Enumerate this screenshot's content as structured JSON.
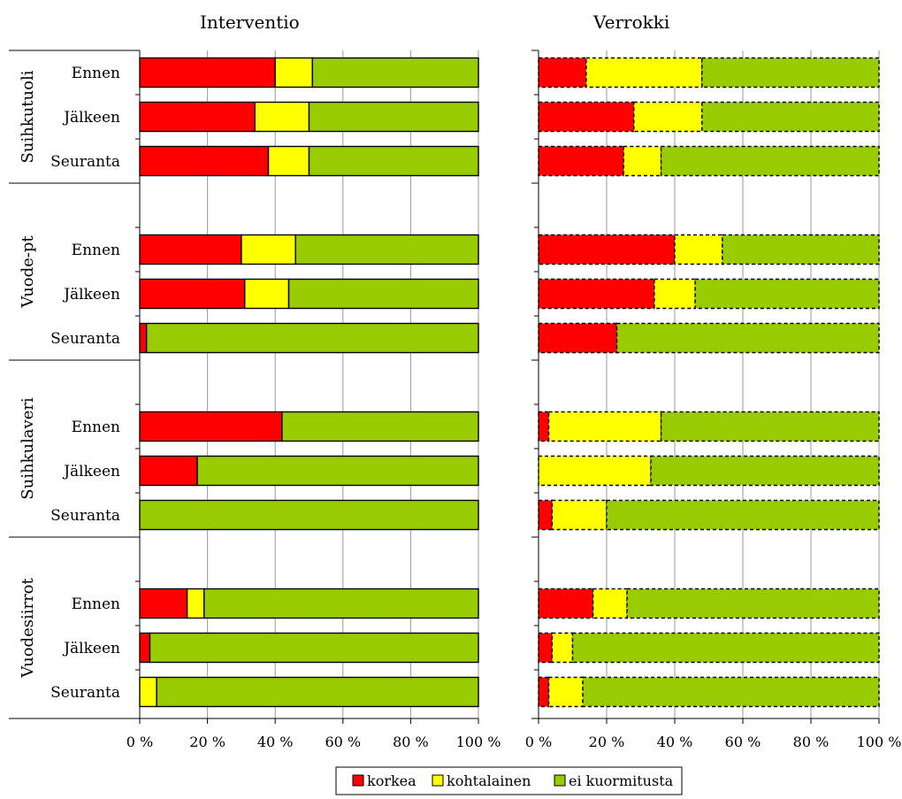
{
  "chart_data": {
    "type": "bar",
    "stacked": true,
    "orientation": "horizontal",
    "panels": [
      {
        "title": "Interventio",
        "bar_border": "solid",
        "groups": [
          {
            "name": "Suihkutuoli",
            "rows": [
              {
                "label": "Ennen",
                "values": [
                  40,
                  11,
                  49
                ]
              },
              {
                "label": "Jälkeen",
                "values": [
                  34,
                  16,
                  50
                ]
              },
              {
                "label": "Seuranta",
                "values": [
                  38,
                  12,
                  50
                ]
              }
            ]
          },
          {
            "name": "Vuode-pt",
            "rows": [
              {
                "label": "Ennen",
                "values": [
                  30,
                  16,
                  54
                ]
              },
              {
                "label": "Jälkeen",
                "values": [
                  31,
                  13,
                  56
                ]
              },
              {
                "label": "Seuranta",
                "values": [
                  2,
                  0,
                  98
                ]
              }
            ]
          },
          {
            "name": "Suihkulaveri",
            "rows": [
              {
                "label": "Ennen",
                "values": [
                  42,
                  0,
                  58
                ]
              },
              {
                "label": "Jälkeen",
                "values": [
                  17,
                  0,
                  83
                ]
              },
              {
                "label": "Seuranta",
                "values": [
                  0,
                  0,
                  100
                ]
              }
            ]
          },
          {
            "name": "Vuodesiirrot",
            "rows": [
              {
                "label": "Ennen",
                "values": [
                  14,
                  5,
                  81
                ]
              },
              {
                "label": "Jälkeen",
                "values": [
                  3,
                  0,
                  97
                ]
              },
              {
                "label": "Seuranta",
                "values": [
                  0,
                  5,
                  95
                ]
              }
            ]
          }
        ]
      },
      {
        "title": "Verrokki",
        "bar_border": "dashed",
        "groups": [
          {
            "name": "Suihkutuoli",
            "rows": [
              {
                "label": "Ennen",
                "values": [
                  14,
                  34,
                  52
                ]
              },
              {
                "label": "Jälkeen",
                "values": [
                  28,
                  20,
                  52
                ]
              },
              {
                "label": "Seuranta",
                "values": [
                  25,
                  11,
                  64
                ]
              }
            ]
          },
          {
            "name": "Vuode-pt",
            "rows": [
              {
                "label": "Ennen",
                "values": [
                  40,
                  14,
                  46
                ]
              },
              {
                "label": "Jälkeen",
                "values": [
                  34,
                  12,
                  54
                ]
              },
              {
                "label": "Seuranta",
                "values": [
                  23,
                  0,
                  77
                ]
              }
            ]
          },
          {
            "name": "Suihkulaveri",
            "rows": [
              {
                "label": "Ennen",
                "values": [
                  3,
                  33,
                  64
                ]
              },
              {
                "label": "Jälkeen",
                "values": [
                  0,
                  33,
                  67
                ]
              },
              {
                "label": "Seuranta",
                "values": [
                  4,
                  16,
                  80
                ]
              }
            ]
          },
          {
            "name": "Vuodesiirrot",
            "rows": [
              {
                "label": "Ennen",
                "values": [
                  16,
                  10,
                  74
                ]
              },
              {
                "label": "Jälkeen",
                "values": [
                  4,
                  6,
                  90
                ]
              },
              {
                "label": "Seuranta",
                "values": [
                  3,
                  10,
                  87
                ]
              }
            ]
          }
        ]
      }
    ],
    "series": [
      {
        "name": "korkea",
        "color": "#ff0000"
      },
      {
        "name": "kohtalainen",
        "color": "#ffff00"
      },
      {
        "name": "ei kuormitusta",
        "color": "#99cc00"
      }
    ],
    "xlim": [
      0,
      100
    ],
    "xticks": [
      "0 %",
      "20 %",
      "40 %",
      "60 %",
      "80 %",
      "100 %"
    ],
    "grid": true,
    "legend_position": "bottom"
  }
}
